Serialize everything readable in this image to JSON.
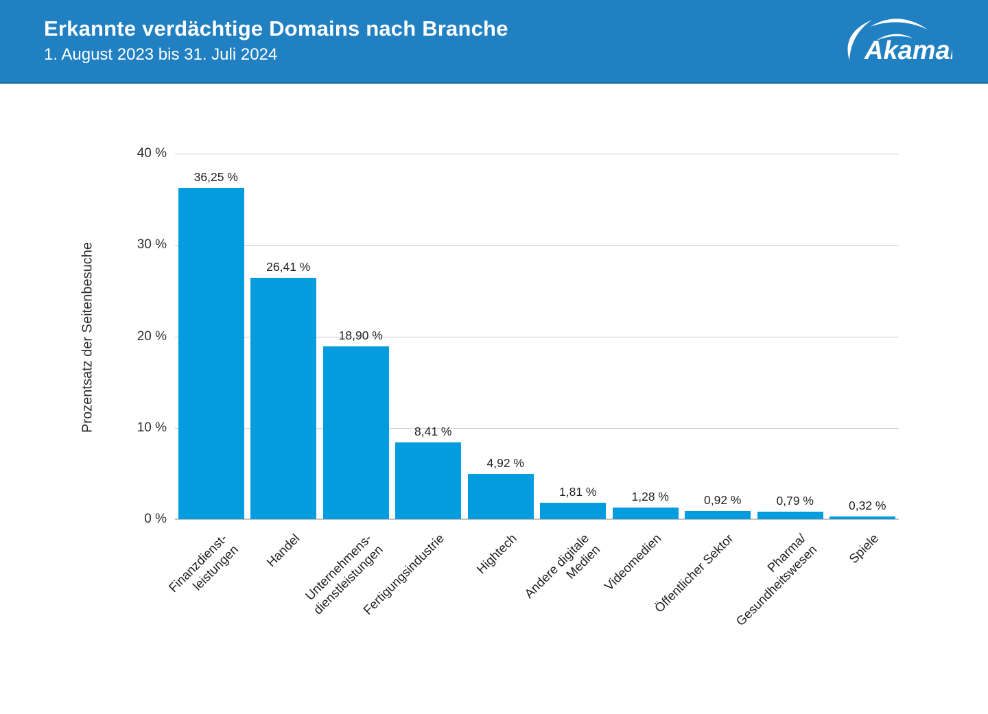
{
  "header": {
    "title": "Erkannte verdächtige Domains nach Branche",
    "subtitle": "1. August 2023 bis 31. Juli 2024",
    "logo_text": "Akamai",
    "background_color": "#2080C2",
    "text_color": "#FFFFFF"
  },
  "chart_data": {
    "type": "bar",
    "title": "Erkannte verdächtige Domains nach Branche",
    "subtitle": "1. August 2023 bis 31. Juli 2024",
    "xlabel": "",
    "ylabel": "Prozentsatz der Seitenbesuche",
    "ylim": [
      0,
      40
    ],
    "grid": "horizontal",
    "legend": "none",
    "bar_color": "#039DDF",
    "gridline_color": "#C9C9C9",
    "y_ticks": [
      "40 %",
      "30 %",
      "20 %",
      "10 %",
      "0 %"
    ],
    "y_tick_values": [
      40,
      30,
      20,
      10,
      0
    ],
    "categories": [
      "Finanzdienst-\nleistungen",
      "Handel",
      "Unternehmens-\ndienstleistungen",
      "Fertigungsindustrie",
      "Hightech",
      "Andere digitale\nMedien",
      "Videomedien",
      "Öffentlicher Sektor",
      "Pharma/\nGesundheitswesen",
      "Spiele"
    ],
    "values": [
      36.25,
      26.41,
      18.9,
      8.41,
      4.92,
      1.81,
      1.28,
      0.92,
      0.79,
      0.32
    ],
    "value_labels": [
      "36,25 %",
      "26,41 %",
      "18,90 %",
      "8,41 %",
      "4,92 %",
      "1,81 %",
      "1,28 %",
      "0,92 %",
      "0,79 %",
      "0,32 %"
    ]
  }
}
